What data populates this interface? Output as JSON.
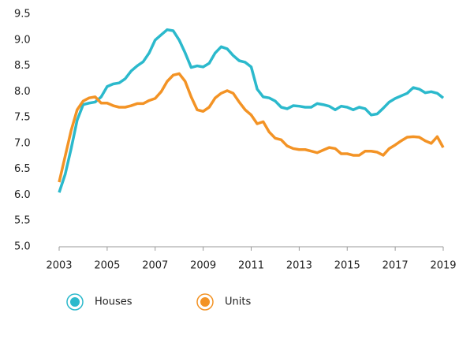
{
  "chart_data": {
    "type": "line",
    "x": [
      2003,
      2003.25,
      2003.5,
      2003.75,
      2004,
      2004.25,
      2004.5,
      2004.75,
      2005,
      2005.25,
      2005.5,
      2005.75,
      2006,
      2006.25,
      2006.5,
      2006.75,
      2007,
      2007.25,
      2007.5,
      2007.75,
      2008,
      2008.25,
      2008.5,
      2008.75,
      2009,
      2009.25,
      2009.5,
      2009.75,
      2010,
      2010.25,
      2010.5,
      2010.75,
      2011,
      2011.25,
      2011.5,
      2011.75,
      2012,
      2012.25,
      2012.5,
      2012.75,
      2013,
      2013.25,
      2013.5,
      2013.75,
      2014,
      2014.25,
      2014.5,
      2014.75,
      2015,
      2015.25,
      2015.5,
      2015.75,
      2016,
      2016.25,
      2016.5,
      2016.75,
      2017,
      2017.25,
      2017.5,
      2017.75,
      2018,
      2018.25,
      2018.5,
      2018.75,
      2019
    ],
    "series": [
      {
        "name": "Houses",
        "color": "#2bb9cc",
        "values": [
          6.05,
          6.4,
          6.9,
          7.45,
          7.75,
          7.78,
          7.8,
          7.9,
          8.1,
          8.15,
          8.17,
          8.25,
          8.4,
          8.5,
          8.58,
          8.75,
          9.0,
          9.1,
          9.2,
          9.18,
          9.0,
          8.75,
          8.47,
          8.5,
          8.48,
          8.55,
          8.75,
          8.87,
          8.83,
          8.7,
          8.6,
          8.57,
          8.48,
          8.05,
          7.9,
          7.88,
          7.82,
          7.7,
          7.67,
          7.73,
          7.72,
          7.7,
          7.7,
          7.77,
          7.75,
          7.72,
          7.65,
          7.72,
          7.7,
          7.65,
          7.7,
          7.67,
          7.55,
          7.57,
          7.68,
          7.8,
          7.87,
          7.92,
          7.97,
          8.08,
          8.05,
          7.98,
          8.0,
          7.97,
          7.88
        ]
      },
      {
        "name": "Units",
        "color": "#f39325",
        "values": [
          6.25,
          6.75,
          7.25,
          7.65,
          7.82,
          7.88,
          7.9,
          7.78,
          7.78,
          7.73,
          7.7,
          7.7,
          7.73,
          7.77,
          7.77,
          7.83,
          7.87,
          8.0,
          8.2,
          8.32,
          8.35,
          8.2,
          7.9,
          7.65,
          7.62,
          7.7,
          7.88,
          7.97,
          8.02,
          7.97,
          7.8,
          7.65,
          7.55,
          7.38,
          7.42,
          7.22,
          7.1,
          7.07,
          6.95,
          6.9,
          6.88,
          6.88,
          6.85,
          6.82,
          6.87,
          6.92,
          6.9,
          6.8,
          6.8,
          6.77,
          6.77,
          6.85,
          6.85,
          6.83,
          6.77,
          6.9,
          6.97,
          7.05,
          7.12,
          7.13,
          7.12,
          7.05,
          7.0,
          7.13,
          6.92
        ]
      }
    ],
    "xlim": [
      2003,
      2019
    ],
    "xticks": [
      2003,
      2005,
      2007,
      2009,
      2011,
      2013,
      2015,
      2017,
      2019
    ],
    "ylim": [
      5,
      9.5
    ],
    "yticks": [
      {
        "value": 5,
        "label": "5.0"
      },
      5.5,
      {
        "value": 6,
        "label": "6.0"
      },
      6.5,
      {
        "value": 7,
        "label": "7.0"
      },
      7.5,
      {
        "value": 8,
        "label": "8.0"
      },
      8.5,
      {
        "value": 9,
        "label": "9.0"
      },
      9.5
    ],
    "grid": false
  }
}
